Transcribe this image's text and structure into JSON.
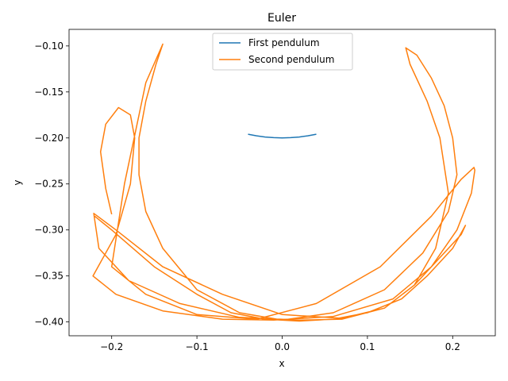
{
  "chart_data": {
    "type": "line",
    "title": "Euler",
    "xlabel": "x",
    "ylabel": "y",
    "xlim": [
      -0.25,
      0.25
    ],
    "ylim": [
      -0.415,
      -0.082
    ],
    "xticks": [
      -0.2,
      -0.1,
      0.0,
      0.1,
      0.2
    ],
    "xtick_labels": [
      "−0.2",
      "−0.1",
      "0.0",
      "0.1",
      "0.2"
    ],
    "yticks": [
      -0.1,
      -0.15,
      -0.2,
      -0.25,
      -0.3,
      -0.35,
      -0.4
    ],
    "ytick_labels": [
      "−0.10",
      "−0.15",
      "−0.20",
      "−0.25",
      "−0.30",
      "−0.35",
      "−0.40"
    ],
    "grid": false,
    "legend_position": "top-center",
    "series": [
      {
        "name": "First pendulum",
        "color": "#1f77b4",
        "x": [
          -0.04,
          -0.03,
          -0.02,
          -0.01,
          0.0,
          0.01,
          0.02,
          0.03,
          0.04
        ],
        "y": [
          -0.196,
          -0.1977,
          -0.199,
          -0.1997,
          -0.2,
          -0.1997,
          -0.199,
          -0.1977,
          -0.196
        ]
      },
      {
        "name": "Second pendulum",
        "color": "#ff7f0e",
        "x": [
          -0.2,
          -0.207,
          -0.213,
          -0.207,
          -0.192,
          -0.178,
          -0.173,
          -0.178,
          -0.195,
          -0.222,
          -0.195,
          -0.14,
          -0.07,
          -0.01,
          0.06,
          0.13,
          0.175,
          0.205,
          0.222,
          0.226,
          0.225,
          0.21,
          0.175,
          0.115,
          0.04,
          -0.03,
          -0.1,
          -0.16,
          -0.2,
          -0.185,
          -0.16,
          -0.14,
          -0.148,
          -0.16,
          -0.168,
          -0.168,
          -0.16,
          -0.14,
          -0.1,
          -0.05,
          0.0,
          0.06,
          0.12,
          0.165,
          0.195,
          0.205,
          0.2,
          0.19,
          0.175,
          0.158,
          0.145,
          0.15,
          0.17,
          0.185,
          0.195,
          0.18,
          0.155,
          0.12,
          0.07,
          0.02,
          -0.05,
          -0.12,
          -0.18,
          -0.215,
          -0.221,
          -0.195,
          -0.14,
          -0.07,
          0.0,
          0.07,
          0.12,
          0.155,
          0.185,
          0.21,
          0.215,
          0.2,
          0.17,
          0.14,
          0.1,
          0.06,
          0.02,
          -0.02,
          -0.06,
          -0.1,
          -0.15,
          -0.2,
          -0.22
        ],
        "y": [
          -0.283,
          -0.255,
          -0.215,
          -0.185,
          -0.167,
          -0.175,
          -0.2,
          -0.25,
          -0.305,
          -0.35,
          -0.37,
          -0.388,
          -0.397,
          -0.398,
          -0.394,
          -0.375,
          -0.34,
          -0.3,
          -0.26,
          -0.235,
          -0.232,
          -0.245,
          -0.285,
          -0.34,
          -0.38,
          -0.397,
          -0.392,
          -0.37,
          -0.34,
          -0.25,
          -0.14,
          -0.098,
          -0.12,
          -0.16,
          -0.2,
          -0.24,
          -0.28,
          -0.32,
          -0.365,
          -0.39,
          -0.398,
          -0.39,
          -0.365,
          -0.325,
          -0.28,
          -0.24,
          -0.2,
          -0.165,
          -0.135,
          -0.11,
          -0.102,
          -0.12,
          -0.16,
          -0.2,
          -0.26,
          -0.32,
          -0.36,
          -0.385,
          -0.397,
          -0.398,
          -0.395,
          -0.38,
          -0.355,
          -0.32,
          -0.282,
          -0.3,
          -0.34,
          -0.37,
          -0.392,
          -0.396,
          -0.385,
          -0.36,
          -0.33,
          -0.305,
          -0.295,
          -0.32,
          -0.35,
          -0.375,
          -0.39,
          -0.397,
          -0.399,
          -0.397,
          -0.39,
          -0.37,
          -0.34,
          -0.3,
          -0.285
        ]
      }
    ]
  }
}
